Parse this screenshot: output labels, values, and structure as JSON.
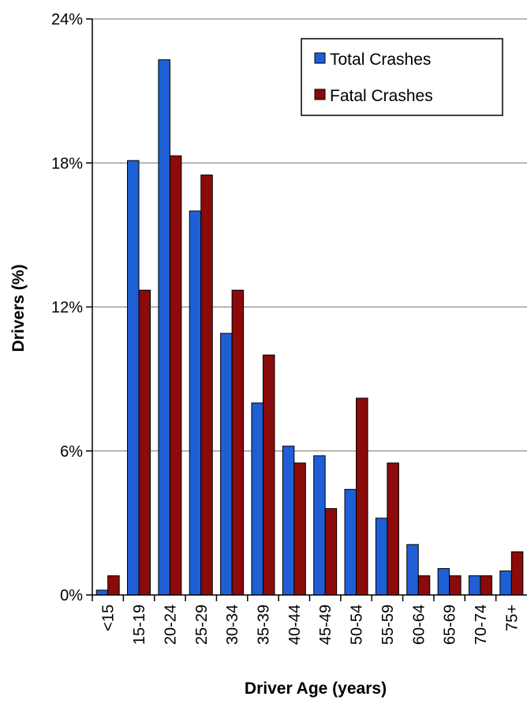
{
  "chart_data": {
    "type": "bar",
    "title": "",
    "xlabel": "Driver Age (years)",
    "ylabel": "Drivers (%)",
    "ylim": [
      0,
      24
    ],
    "yticks": [
      0,
      6,
      12,
      18,
      24
    ],
    "ytick_labels": [
      "0%",
      "6%",
      "12%",
      "18%",
      "24%"
    ],
    "grid": true,
    "legend_position": "top-right",
    "categories": [
      "<15",
      "15-19",
      "20-24",
      "25-29",
      "30-34",
      "35-39",
      "40-44",
      "45-49",
      "50-54",
      "55-59",
      "60-64",
      "65-69",
      "70-74",
      "75+"
    ],
    "series": [
      {
        "name": "Total Crashes",
        "color": "#1f5fd6",
        "values": [
          0.2,
          18.1,
          22.3,
          16.0,
          10.9,
          8.0,
          6.2,
          5.8,
          4.4,
          3.2,
          2.1,
          1.1,
          0.8,
          1.0
        ]
      },
      {
        "name": "Fatal Crashes",
        "color": "#8b0a0a",
        "values": [
          0.8,
          12.7,
          18.3,
          17.5,
          12.7,
          10.0,
          5.5,
          3.6,
          8.2,
          5.5,
          0.8,
          0.8,
          0.8,
          1.8
        ]
      }
    ]
  }
}
